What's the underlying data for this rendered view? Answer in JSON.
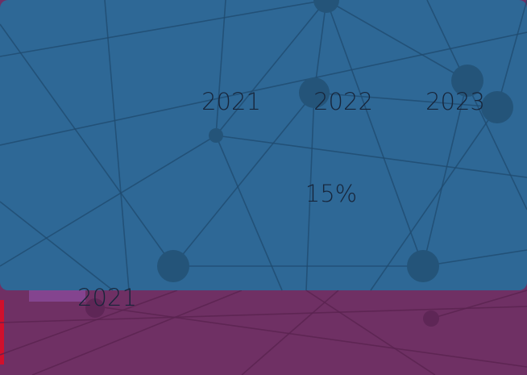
{
  "tabs": [
    "2021",
    "2022",
    "2023"
  ],
  "value": "15%",
  "footer_year": "2021"
}
